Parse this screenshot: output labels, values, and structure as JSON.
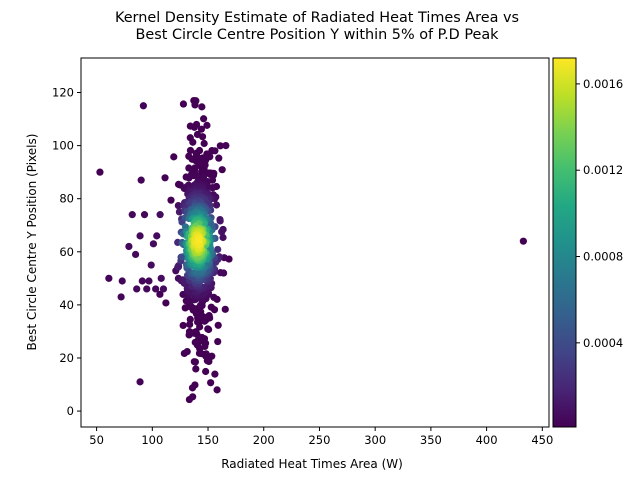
{
  "chart_data": {
    "type": "scatter",
    "title_line1": "Kernel Density Estimate of Radiated Heat Times Area vs",
    "title_line2": "Best Circle Centre Position Y within 5% of P.D Peak",
    "xlabel": "Radiated Heat Times Area (W)",
    "ylabel": "Best Circle Centre Y Position (Pixels)",
    "xlim": [
      36,
      456
    ],
    "ylim": [
      -6,
      133
    ],
    "xticks": [
      50,
      100,
      150,
      200,
      250,
      300,
      350,
      400,
      450
    ],
    "yticks": [
      0,
      20,
      40,
      60,
      80,
      100,
      120
    ],
    "colormap": "viridis",
    "colorbar": {
      "min": 1e-05,
      "max": 0.00172,
      "ticks": [
        0.0004,
        0.0008,
        0.0012,
        0.0016
      ],
      "tick_labels": [
        "0.0004",
        "0.0008",
        "0.0012",
        "0.0016"
      ]
    },
    "grid": false,
    "outliers": [
      {
        "x": 53,
        "y": 90,
        "d": 1e-05
      },
      {
        "x": 433,
        "y": 64,
        "d": 1e-05
      },
      {
        "x": 92,
        "y": 115,
        "d": 2e-05
      },
      {
        "x": 89,
        "y": 11,
        "d": 2e-05
      },
      {
        "x": 90,
        "y": 87,
        "d": 3e-05
      },
      {
        "x": 61,
        "y": 50,
        "d": 3e-05
      },
      {
        "x": 72,
        "y": 43,
        "d": 3e-05
      },
      {
        "x": 73,
        "y": 49,
        "d": 3e-05
      },
      {
        "x": 79,
        "y": 62,
        "d": 4e-05
      },
      {
        "x": 82,
        "y": 74,
        "d": 4e-05
      },
      {
        "x": 93,
        "y": 74,
        "d": 4e-05
      },
      {
        "x": 86,
        "y": 46,
        "d": 4e-05
      },
      {
        "x": 91,
        "y": 49,
        "d": 4e-05
      },
      {
        "x": 95,
        "y": 46,
        "d": 5e-05
      },
      {
        "x": 85,
        "y": 59,
        "d": 5e-05
      },
      {
        "x": 89,
        "y": 66,
        "d": 5e-05
      },
      {
        "x": 103,
        "y": 46,
        "d": 5e-05
      },
      {
        "x": 97,
        "y": 49,
        "d": 5e-05
      },
      {
        "x": 107,
        "y": 74,
        "d": 6e-05
      },
      {
        "x": 101,
        "y": 63,
        "d": 6e-05
      },
      {
        "x": 104,
        "y": 66,
        "d": 6e-05
      },
      {
        "x": 108,
        "y": 50,
        "d": 6e-05
      },
      {
        "x": 110,
        "y": 46,
        "d": 6e-05
      },
      {
        "x": 99,
        "y": 55,
        "d": 6e-05
      },
      {
        "x": 166,
        "y": 100,
        "d": 3e-05
      },
      {
        "x": 164,
        "y": 52,
        "d": 4e-05
      }
    ],
    "cluster": {
      "center_x": 141,
      "center_y": 64,
      "sd_x": 8.5,
      "sd_y": 26,
      "count": 620,
      "peak_density": 0.00172,
      "y_range": [
        0,
        127
      ]
    }
  }
}
